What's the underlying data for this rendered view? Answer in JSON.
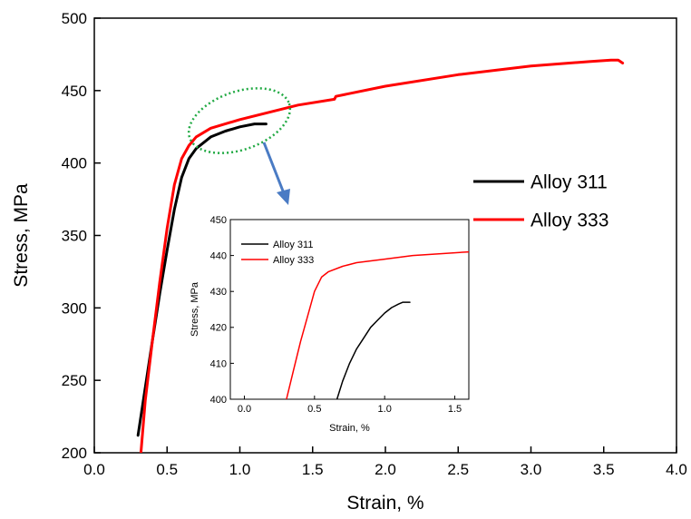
{
  "chart_data": [
    {
      "type": "line",
      "xlabel": "Strain, %",
      "ylabel": "Stress, MPa",
      "xlim": [
        0.0,
        4.0
      ],
      "ylim": [
        200,
        500
      ],
      "xticks": [
        "0.0",
        "0.5",
        "1.0",
        "1.5",
        "2.0",
        "2.5",
        "3.0",
        "3.5",
        "4.0"
      ],
      "yticks": [
        "200",
        "250",
        "300",
        "350",
        "400",
        "450",
        "500"
      ],
      "legend_position": "right",
      "series": [
        {
          "name": "Alloy 311",
          "color": "#000000",
          "x": [
            0.3,
            0.35,
            0.4,
            0.45,
            0.5,
            0.55,
            0.6,
            0.65,
            0.7,
            0.75,
            0.8,
            0.9,
            1.0,
            1.1,
            1.18
          ],
          "y": [
            212,
            245,
            278,
            310,
            340,
            368,
            390,
            403,
            410,
            414,
            418,
            422,
            425,
            427,
            427
          ]
        },
        {
          "name": "Alloy 333",
          "color": "#ff0000",
          "x": [
            0.32,
            0.35,
            0.4,
            0.45,
            0.5,
            0.55,
            0.6,
            0.65,
            0.7,
            0.8,
            1.0,
            1.2,
            1.4,
            1.65,
            1.66,
            2.0,
            2.5,
            3.0,
            3.4,
            3.55,
            3.6,
            3.63
          ],
          "y": [
            200,
            236,
            278,
            318,
            355,
            385,
            403,
            412,
            418,
            424,
            430,
            435,
            440,
            444,
            446,
            453,
            461,
            467,
            470,
            471,
            471,
            469
          ]
        }
      ]
    },
    {
      "type": "line",
      "title": "",
      "xlabel": "Strain, %",
      "ylabel": "Stress, MPa",
      "xlim": [
        -0.1,
        1.6
      ],
      "ylim": [
        400,
        450
      ],
      "xticks": [
        "0.0",
        "0.5",
        "1.0",
        "1.5"
      ],
      "yticks": [
        "400",
        "410",
        "420",
        "430",
        "440",
        "450"
      ],
      "legend_position": "top-left",
      "series": [
        {
          "name": "Alloy 311",
          "color": "#000000",
          "x": [
            0.66,
            0.7,
            0.75,
            0.8,
            0.85,
            0.9,
            0.95,
            1.0,
            1.05,
            1.1,
            1.13,
            1.16,
            1.18
          ],
          "y": [
            400,
            405,
            410,
            414,
            417,
            420,
            422,
            424,
            425.5,
            426.5,
            427,
            427,
            427
          ]
        },
        {
          "name": "Alloy 333",
          "color": "#ff0000",
          "x": [
            0.3,
            0.35,
            0.4,
            0.45,
            0.5,
            0.55,
            0.6,
            0.7,
            0.8,
            1.0,
            1.2,
            1.4,
            1.6
          ],
          "y": [
            400,
            408,
            416,
            423,
            430,
            434,
            435.5,
            437,
            438,
            439,
            440,
            440.5,
            441
          ]
        }
      ]
    }
  ],
  "annotation": {
    "ellipse_color": "#22aa44",
    "arrow_color": "#4a7bc4"
  }
}
